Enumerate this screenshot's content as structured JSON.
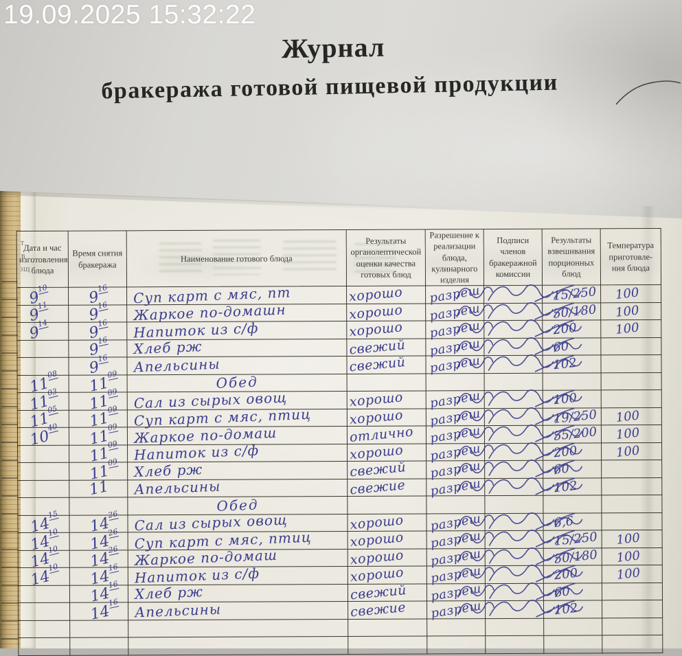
{
  "camera_overlay": {
    "timestamp": "19.09.2025 15:32:22"
  },
  "document": {
    "title_line1": "Журнал",
    "title_line2": "бракеража готовой пищевой продукции",
    "edge_fragments": [
      "ат",
      "ов",
      "ющ"
    ],
    "ink_color": "#3b3e8e"
  },
  "table": {
    "headers": [
      "Дата и час изготовления блюда",
      "Время снятия бракеража",
      "Наименование готового блюда",
      "Результаты органолептической оценки качества готовых блюд",
      "Разрешение к реализации блюда, кулинарного изделия",
      "Подписи членов бракеражной комиссии",
      "Результаты взвешивания порционных блюд",
      "Температура приготовле- ния блюда"
    ],
    "rows": [
      {
        "type": "entry",
        "made_h": "9",
        "made_m": "10",
        "check_h": "9",
        "check_m": "16",
        "dish": "Суп карт с мяс, пт",
        "quality": "хорошо",
        "permission": "разреш",
        "signed": true,
        "weight": "15/250",
        "temp": "100"
      },
      {
        "type": "entry",
        "made_h": "9",
        "made_m": "11",
        "check_h": "9",
        "check_m": "16",
        "dish": "Жаркое по-домашн",
        "quality": "хорошо",
        "permission": "разреш",
        "signed": true,
        "weight": "50/180",
        "temp": "100"
      },
      {
        "type": "entry",
        "made_h": "9",
        "made_m": "14",
        "check_h": "9",
        "check_m": "16",
        "dish": "Напиток из с/ф",
        "quality": "хорошо",
        "permission": "разреш",
        "signed": true,
        "weight": "200",
        "temp": "100"
      },
      {
        "type": "entry",
        "made_h": "",
        "made_m": "",
        "check_h": "9",
        "check_m": "16",
        "dish": "Хлеб рж",
        "quality": "свежий",
        "permission": "разреш",
        "signed": true,
        "weight": "60",
        "temp": ""
      },
      {
        "type": "entry",
        "made_h": "",
        "made_m": "",
        "check_h": "9",
        "check_m": "16",
        "dish": "Апельсины",
        "quality": "свежий",
        "permission": "разреш",
        "signed": true,
        "weight": "102",
        "temp": ""
      },
      {
        "type": "section",
        "label": "Обед",
        "made_h": "11",
        "made_m": "08",
        "check_h": "11",
        "check_m": "09"
      },
      {
        "type": "entry",
        "made_h": "11",
        "made_m": "03",
        "check_h": "11",
        "check_m": "09",
        "dish": "Сал из сырых овощ",
        "quality": "хорошо",
        "permission": "разреш",
        "signed": true,
        "weight": "100",
        "temp": ""
      },
      {
        "type": "entry",
        "made_h": "11",
        "made_m": "05",
        "check_h": "11",
        "check_m": "09",
        "dish": "Суп карт с мяс, птиц",
        "quality": "хорошо",
        "permission": "разреш",
        "signed": true,
        "weight": "19/250",
        "temp": "100"
      },
      {
        "type": "entry",
        "made_h": "10",
        "made_m": "40",
        "check_h": "11",
        "check_m": "09",
        "dish": "Жаркое по-домаш",
        "quality": "отлично",
        "permission": "разреш",
        "signed": true,
        "weight": "55/200",
        "temp": "100"
      },
      {
        "type": "entry",
        "made_h": "",
        "made_m": "",
        "check_h": "11",
        "check_m": "09",
        "dish": "Напиток из с/ф",
        "quality": "хорошо",
        "permission": "разреш",
        "signed": true,
        "weight": "200",
        "temp": "100"
      },
      {
        "type": "entry",
        "made_h": "",
        "made_m": "",
        "check_h": "11",
        "check_m": "09",
        "dish": "Хлеб рж",
        "quality": "свежий",
        "permission": "разреш",
        "signed": true,
        "weight": "60",
        "temp": ""
      },
      {
        "type": "entry",
        "made_h": "",
        "made_m": "",
        "check_h": "11",
        "check_m": "",
        "dish": "Апельсины",
        "quality": "свежие",
        "permission": "разреш",
        "signed": true,
        "weight": "102",
        "temp": ""
      },
      {
        "type": "section",
        "label": "Обед",
        "made_h": "",
        "made_m": "",
        "check_h": "",
        "check_m": ""
      },
      {
        "type": "entry",
        "made_h": "14",
        "made_m": "15",
        "check_h": "14",
        "check_m": "26",
        "dish": "Сал из сырых овощ",
        "quality": "хорошо",
        "permission": "разреш",
        "signed": true,
        "weight": "6,6",
        "temp": ""
      },
      {
        "type": "entry",
        "made_h": "14",
        "made_m": "10",
        "check_h": "14",
        "check_m": "26",
        "dish": "Суп карт с мяс, птиц",
        "quality": "хорошо",
        "permission": "разреш",
        "signed": true,
        "weight": "15/250",
        "temp": "100"
      },
      {
        "type": "entry",
        "made_h": "14",
        "made_m": "10",
        "check_h": "14",
        "check_m": "26",
        "dish": "Жаркое по-домаш",
        "quality": "хорошо",
        "permission": "разреш",
        "signed": true,
        "weight": "50/180",
        "temp": "100"
      },
      {
        "type": "entry",
        "made_h": "14",
        "made_m": "10",
        "check_h": "14",
        "check_m": "16",
        "dish": "Напиток из с/ф",
        "quality": "хорошо",
        "permission": "разреш",
        "signed": true,
        "weight": "200",
        "temp": "100"
      },
      {
        "type": "entry",
        "made_h": "",
        "made_m": "",
        "check_h": "14",
        "check_m": "16",
        "dish": "Хлеб рж",
        "quality": "свежий",
        "permission": "разреш",
        "signed": true,
        "weight": "60",
        "temp": ""
      },
      {
        "type": "entry",
        "made_h": "",
        "made_m": "",
        "check_h": "14",
        "check_m": "16",
        "dish": "Апельсины",
        "quality": "свежие",
        "permission": "разреш",
        "signed": true,
        "weight": "102",
        "temp": ""
      },
      {
        "type": "empty"
      },
      {
        "type": "empty"
      }
    ]
  }
}
